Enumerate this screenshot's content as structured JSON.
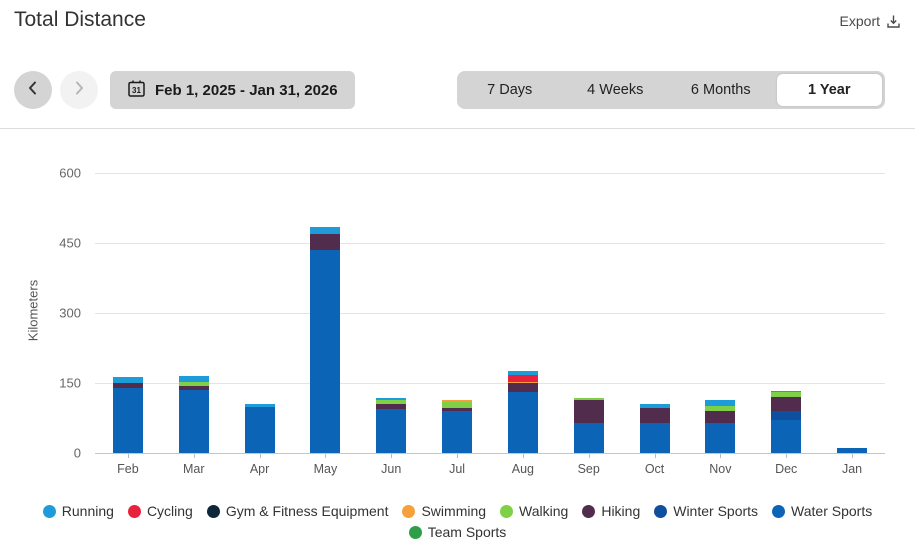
{
  "header": {
    "title": "Total Distance",
    "export_label": "Export"
  },
  "nav": {
    "date_range": "Feb 1, 2025 - Jan 31, 2026",
    "calendar_day": "31"
  },
  "tabs": {
    "items": [
      {
        "label": "7 Days",
        "selected": false
      },
      {
        "label": "4 Weeks",
        "selected": false
      },
      {
        "label": "6 Months",
        "selected": false
      },
      {
        "label": "1 Year",
        "selected": true
      }
    ]
  },
  "chart_data": {
    "type": "bar",
    "stacked": true,
    "title": "Total Distance",
    "ylabel": "Kilometers",
    "ylim": [
      0,
      600
    ],
    "yticks": [
      0,
      150,
      300,
      450,
      600
    ],
    "grid": true,
    "categories": [
      "Feb",
      "Mar",
      "Apr",
      "May",
      "Jun",
      "Jul",
      "Aug",
      "Sep",
      "Oct",
      "Nov",
      "Dec",
      "Jan"
    ],
    "series": [
      {
        "name": "Running",
        "color": "#1e9cd9",
        "values": [
          13,
          12,
          6,
          14,
          5,
          0,
          8,
          0,
          10,
          13,
          4,
          0
        ]
      },
      {
        "name": "Cycling",
        "color": "#e8213c",
        "values": [
          0,
          0,
          0,
          0,
          0,
          0,
          15,
          0,
          0,
          0,
          0,
          0
        ]
      },
      {
        "name": "Gym & Fitness Equipment",
        "color": "#0d2639",
        "values": [
          0,
          0,
          0,
          0,
          0,
          0,
          0,
          0,
          0,
          0,
          0,
          0
        ]
      },
      {
        "name": "Swimming",
        "color": "#f6a03b",
        "values": [
          0,
          0,
          0,
          0,
          0,
          4,
          3,
          0,
          0,
          0,
          0,
          0
        ]
      },
      {
        "name": "Walking",
        "color": "#7ed046",
        "values": [
          0,
          9,
          0,
          0,
          9,
          13,
          0,
          4,
          0,
          11,
          10,
          0
        ]
      },
      {
        "name": "Hiking",
        "color": "#522c4c",
        "values": [
          9,
          9,
          0,
          34,
          11,
          6,
          19,
          49,
          32,
          25,
          30,
          0
        ]
      },
      {
        "name": "Winter Sports",
        "color": "#0e4f9e",
        "values": [
          0,
          0,
          0,
          0,
          0,
          0,
          0,
          0,
          0,
          0,
          20,
          0
        ]
      },
      {
        "name": "Water Sports",
        "color": "#0b64b5",
        "values": [
          140,
          135,
          98,
          436,
          94,
          91,
          131,
          64,
          64,
          64,
          70,
          10
        ]
      },
      {
        "name": "Team Sports",
        "color": "#2f9e48",
        "values": [
          0,
          0,
          0,
          0,
          0,
          0,
          0,
          0,
          0,
          0,
          0,
          0
        ]
      }
    ],
    "stack_order_bottom_to_top": [
      "Team Sports",
      "Water Sports",
      "Winter Sports",
      "Hiking",
      "Walking",
      "Swimming",
      "Gym & Fitness Equipment",
      "Cycling",
      "Running"
    ],
    "legend_position": "bottom"
  }
}
